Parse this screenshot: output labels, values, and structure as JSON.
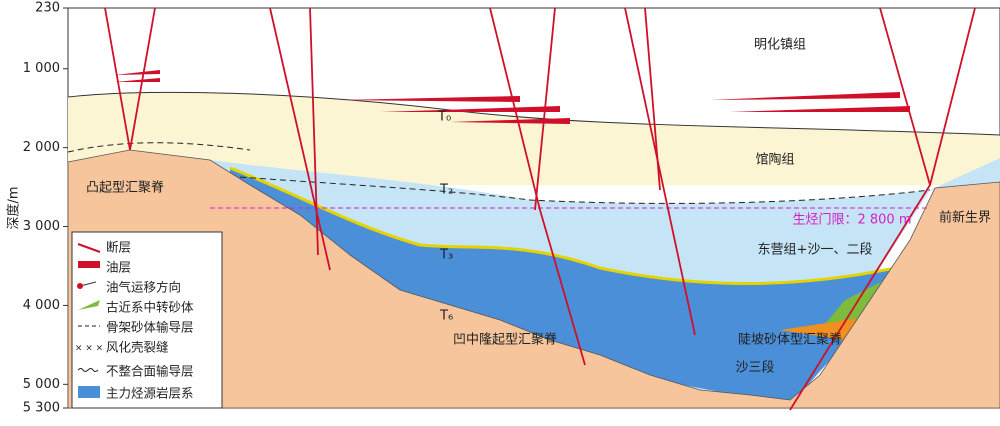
{
  "depth_axis": {
    "label": "深度/m",
    "min": 230,
    "max": 5300,
    "ticks": [
      {
        "value": 230,
        "label": "230"
      },
      {
        "value": 1000,
        "label": "1 000"
      },
      {
        "value": 2000,
        "label": "2 000"
      },
      {
        "value": 3000,
        "label": "3 000"
      },
      {
        "value": 4000,
        "label": "4 000"
      },
      {
        "value": 5000,
        "label": "5 000"
      },
      {
        "value": 5300,
        "label": "5 300"
      }
    ]
  },
  "labels": {
    "minghuazhen": "明化镇组",
    "guantao": "馆陶组",
    "t0": "T₀",
    "t2": "T₂",
    "t3": "T₃",
    "t6": "T₆",
    "uplift_ridge": "凸起型汇聚脊",
    "threshold": "生烃门限：2 800 m",
    "pre_cenozoic": "前新生界",
    "dongying": "东营组+沙一、二段",
    "sag_ridge": "凹中隆起型汇聚脊",
    "slope_ridge": "陡坡砂体型汇聚脊",
    "es3": "沙三段"
  },
  "legend": [
    "断层",
    "油层",
    "油气运移方向",
    "古近系中转砂体",
    "骨架砂体输导层",
    "风化壳裂缝",
    "不整合面输导层",
    "主力烃源岩层系"
  ]
}
